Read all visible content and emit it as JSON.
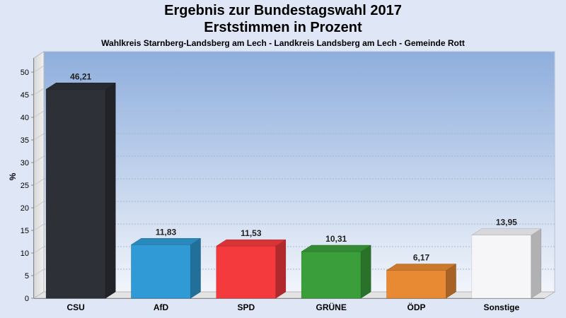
{
  "chart_data": {
    "type": "bar",
    "title": "Ergebnis zur Bundestagswahl 2017",
    "title_line2": "Erststimmen in Prozent",
    "subtitle": "Wahlkreis Starnberg-Landsberg am Lech - Landkreis Landsberg am Lech - Gemeinde Rott",
    "ylabel": "%",
    "xlabel": "",
    "ylim": [
      0,
      50
    ],
    "yticks": [
      0,
      5,
      10,
      15,
      20,
      25,
      30,
      35,
      40,
      45,
      50
    ],
    "grid": true,
    "categories": [
      "CSU",
      "AfD",
      "SPD",
      "GRÜNE",
      "ÖDP",
      "Sonstige"
    ],
    "values": [
      46.21,
      11.83,
      11.53,
      10.31,
      6.17,
      13.95
    ],
    "value_labels": [
      "46,21",
      "11,83",
      "11,53",
      "10,31",
      "6,17",
      "13,95"
    ],
    "colors": [
      "#2e3038",
      "#2f9ad6",
      "#f53a3e",
      "#3a9e3a",
      "#e78a33",
      "#f6f6f8"
    ]
  }
}
